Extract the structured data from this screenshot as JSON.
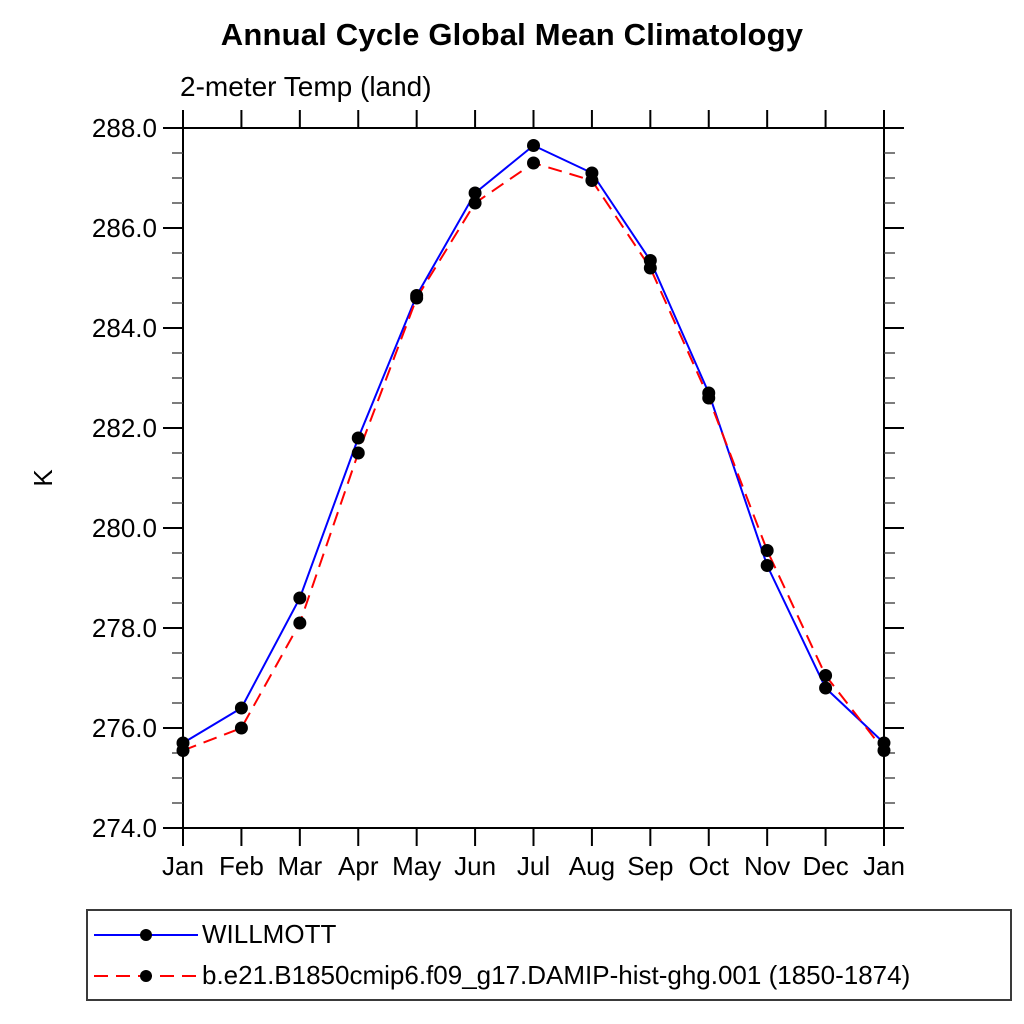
{
  "header": {
    "title": "Annual Cycle Global Mean Climatology",
    "subtitle": "2-meter Temp (land)"
  },
  "chart_data": {
    "type": "line",
    "title": "Annual Cycle Global Mean Climatology",
    "subtitle": "2-meter Temp (land)",
    "ylabel": "K",
    "xlabel": "",
    "categories": [
      "Jan",
      "Feb",
      "Mar",
      "Apr",
      "May",
      "Jun",
      "Jul",
      "Aug",
      "Sep",
      "Oct",
      "Nov",
      "Dec",
      "Jan"
    ],
    "series": [
      {
        "name": "WILLMOTT",
        "color": "#0000ff",
        "dash": "solid",
        "marker": "black-dot",
        "values": [
          275.7,
          276.4,
          278.6,
          281.8,
          284.65,
          286.7,
          287.65,
          287.1,
          285.35,
          282.7,
          279.25,
          276.8,
          275.7
        ]
      },
      {
        "name": "b.e21.B1850cmip6.f09_g17.DAMIP-hist-ghg.001 (1850-1874)",
        "color": "#ff0000",
        "dash": "dashed",
        "marker": "black-dot",
        "values": [
          275.55,
          276.0,
          278.1,
          281.5,
          284.6,
          286.5,
          287.3,
          286.95,
          285.2,
          282.6,
          279.55,
          277.05,
          275.55
        ]
      }
    ],
    "ylim": [
      274.0,
      288.0
    ],
    "ytick_step": 2.0,
    "ytick_minor_step": 0.5,
    "ytick_labels": [
      "274.0",
      "276.0",
      "278.0",
      "280.0",
      "282.0",
      "284.0",
      "286.0",
      "288.0"
    ],
    "marker_color": "#000000",
    "axis_color": "#000000",
    "grid": false,
    "legend_position": "bottom-left-box"
  }
}
